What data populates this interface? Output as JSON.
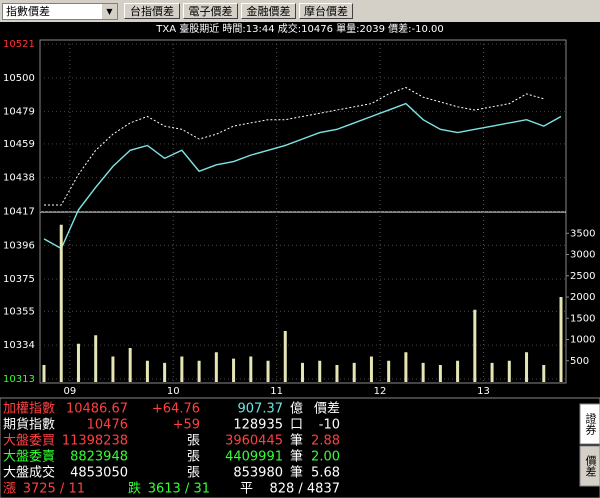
{
  "toolbar": {
    "dropdown": "指數價差",
    "buttons": [
      "台指價差",
      "電子價差",
      "金融價差",
      "摩台價差"
    ]
  },
  "info_line": "TXA  臺股期近 時間:13:44 成交:10476 單量:2039 價差:-10.00",
  "chart_data": [
    {
      "type": "line",
      "x": [
        525,
        535,
        545,
        555,
        565,
        575,
        585,
        595,
        605,
        615,
        625,
        635,
        645,
        655,
        665,
        675,
        685,
        695,
        705,
        715,
        725,
        735,
        745,
        755,
        765,
        775,
        785,
        795,
        805,
        815,
        825
      ],
      "series": [
        {
          "name": "加權指數",
          "color": "#ffffff",
          "values": [
            10421,
            10421,
            10440,
            10455,
            10465,
            10472,
            10476,
            10470,
            10468,
            10462,
            10465,
            10470,
            10472,
            10474,
            10474,
            10476,
            10478,
            10480,
            10482,
            10484,
            10490,
            10494,
            10488,
            10485,
            10482,
            10480,
            10482,
            10484,
            10490,
            10487,
            null
          ]
        },
        {
          "name": "期貨指數",
          "color": "#7fe3e3",
          "values": [
            10400,
            10394,
            10418,
            10432,
            10445,
            10455,
            10458,
            10450,
            10455,
            10442,
            10446,
            10448,
            10452,
            10455,
            10458,
            10462,
            10466,
            10468,
            10472,
            10476,
            10480,
            10484,
            10474,
            10468,
            10466,
            10468,
            10470,
            10472,
            10474,
            10470,
            10476
          ]
        }
      ],
      "xlim": [
        525,
        825
      ],
      "xticks": [
        {
          "value": 540,
          "label": "09"
        },
        {
          "value": 600,
          "label": "10"
        },
        {
          "value": 660,
          "label": "11"
        },
        {
          "value": 720,
          "label": "12"
        },
        {
          "value": 780,
          "label": "13"
        }
      ],
      "ylim": [
        10313,
        10521
      ],
      "yticks": [
        10313,
        10334,
        10355,
        10375,
        10396,
        10417,
        10438,
        10459,
        10479,
        10500,
        10521
      ],
      "grid": true
    },
    {
      "type": "bar",
      "x": [
        525,
        535,
        545,
        555,
        565,
        575,
        585,
        595,
        605,
        615,
        625,
        635,
        645,
        655,
        665,
        675,
        685,
        695,
        705,
        715,
        725,
        735,
        745,
        755,
        765,
        775,
        785,
        795,
        805,
        815,
        825
      ],
      "values": [
        400,
        3700,
        900,
        1100,
        600,
        800,
        500,
        450,
        600,
        500,
        700,
        550,
        600,
        500,
        1200,
        450,
        500,
        400,
        450,
        600,
        500,
        700,
        450,
        400,
        500,
        1700,
        450,
        500,
        700,
        400,
        2000
      ],
      "color": "#e6e6b4",
      "xlim": [
        525,
        825
      ],
      "ylim": [
        0,
        4000
      ],
      "yticks": [
        500,
        1000,
        1500,
        2000,
        2500,
        3000,
        3500
      ]
    }
  ],
  "quote_table": {
    "rows": [
      [
        "加權指數",
        "10486.67",
        "+64.76",
        "907.37",
        "億",
        "價差"
      ],
      [
        "期貨指數",
        "10476",
        "+59",
        "128935",
        "口",
        "-10"
      ],
      [
        "大盤委買",
        "11398238",
        "張",
        "3960445",
        "筆",
        "2.88"
      ],
      [
        "大盤委賣",
        "8823948",
        "張",
        "4409991",
        "筆",
        "2.00"
      ],
      [
        "大盤成交",
        "4853050",
        "張",
        "853980",
        "筆",
        "5.68"
      ]
    ]
  },
  "breadth": {
    "up_label": "漲",
    "up": "3725 / 11",
    "down_label": "跌",
    "down": "3613 / 31",
    "flat_label": "平",
    "flat": "828 / 4837"
  },
  "side_tabs": [
    "證券",
    "價差"
  ]
}
